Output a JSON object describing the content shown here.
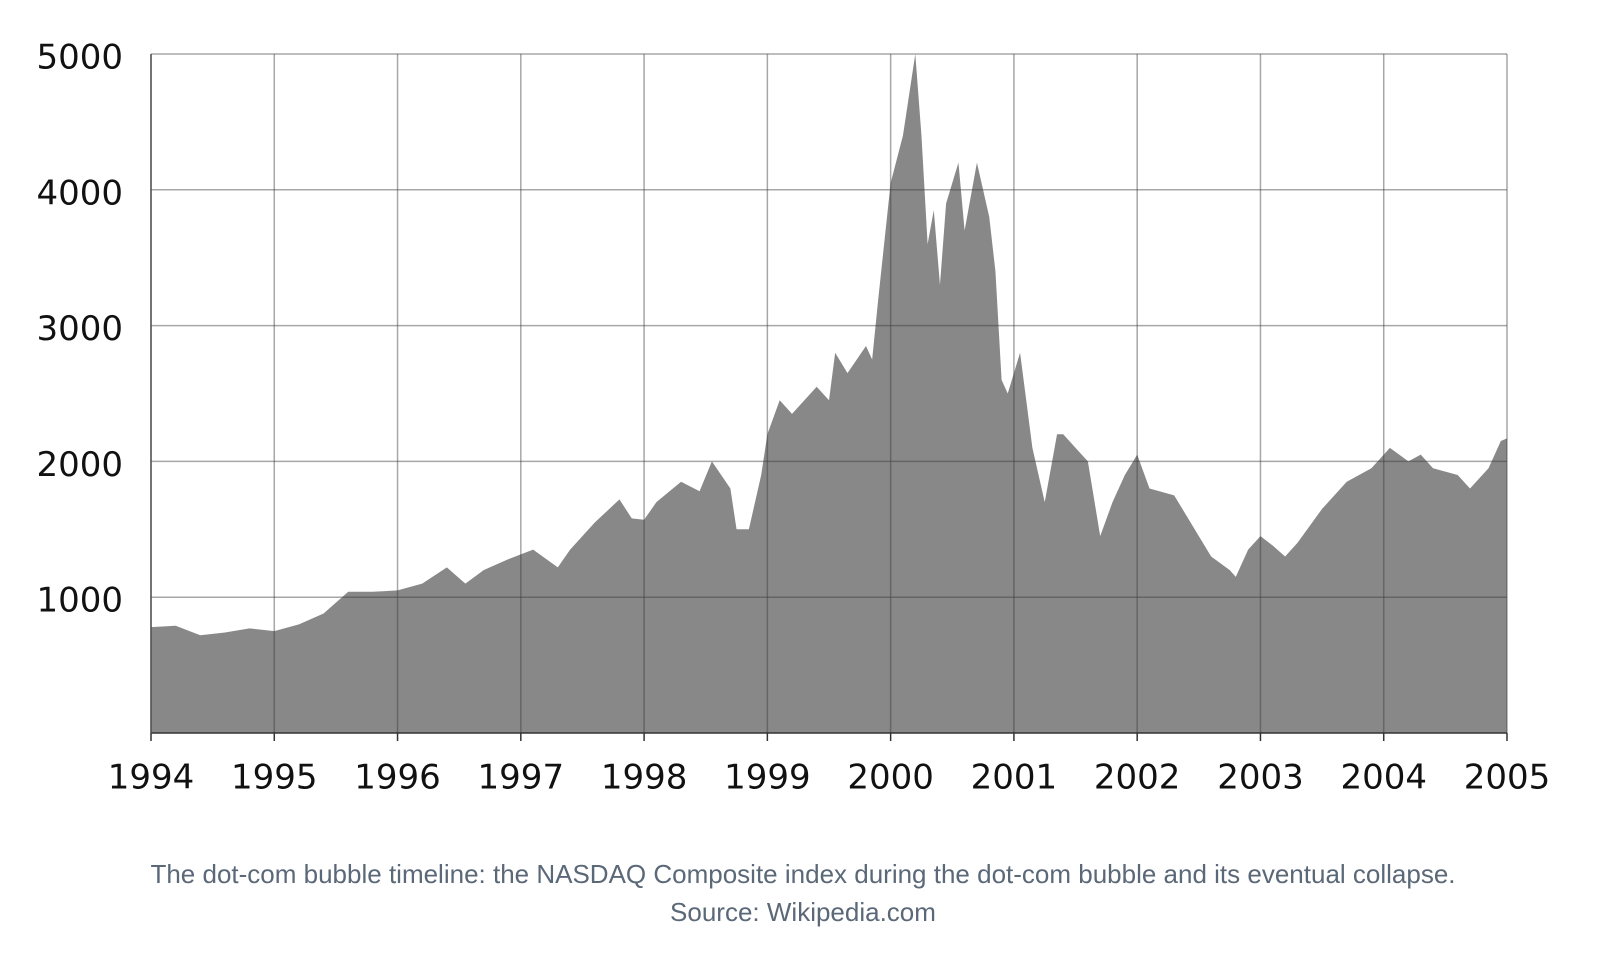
{
  "chart_data": {
    "type": "area",
    "caption": "The dot-com bubble timeline: the NASDAQ Composite index during the dot-com bubble and its eventual collapse.",
    "source": "Source: Wikipedia.com",
    "color": "#888888",
    "x": [
      1994.0,
      1994.2,
      1994.4,
      1994.6,
      1994.8,
      1995.0,
      1995.2,
      1995.4,
      1995.5,
      1995.6,
      1995.8,
      1996.0,
      1996.2,
      1996.4,
      1996.55,
      1996.7,
      1996.9,
      1997.1,
      1997.3,
      1997.4,
      1997.6,
      1997.8,
      1997.9,
      1998.0,
      1998.1,
      1998.3,
      1998.45,
      1998.55,
      1998.7,
      1998.75,
      1998.85,
      1998.95,
      1999.0,
      1999.1,
      1999.2,
      1999.4,
      1999.5,
      1999.55,
      1999.65,
      1999.8,
      1999.85,
      1999.9,
      2000.0,
      2000.1,
      2000.2,
      2000.25,
      2000.3,
      2000.35,
      2000.4,
      2000.45,
      2000.55,
      2000.6,
      2000.7,
      2000.8,
      2000.85,
      2000.9,
      2000.95,
      2001.05,
      2001.15,
      2001.25,
      2001.35,
      2001.4,
      2001.5,
      2001.6,
      2001.7,
      2001.8,
      2001.9,
      2002.0,
      2002.1,
      2002.3,
      2002.5,
      2002.6,
      2002.75,
      2002.8,
      2002.9,
      2003.0,
      2003.1,
      2003.2,
      2003.3,
      2003.5,
      2003.7,
      2003.9,
      2004.05,
      2004.2,
      2004.3,
      2004.4,
      2004.6,
      2004.7,
      2004.85,
      2004.95,
      2005.0
    ],
    "values": [
      780,
      790,
      720,
      740,
      770,
      750,
      800,
      880,
      960,
      1040,
      1040,
      1050,
      1100,
      1220,
      1100,
      1200,
      1280,
      1350,
      1220,
      1350,
      1550,
      1720,
      1580,
      1570,
      1700,
      1850,
      1780,
      2000,
      1800,
      1500,
      1500,
      1900,
      2200,
      2450,
      2350,
      2550,
      2450,
      2800,
      2650,
      2850,
      2750,
      3200,
      4050,
      4400,
      5000,
      4400,
      3600,
      3850,
      3300,
      3900,
      4200,
      3700,
      4200,
      3800,
      3400,
      2600,
      2500,
      2800,
      2100,
      1700,
      2200,
      2200,
      2100,
      2000,
      1450,
      1700,
      1900,
      2050,
      1800,
      1750,
      1450,
      1300,
      1200,
      1150,
      1350,
      1450,
      1380,
      1300,
      1400,
      1650,
      1850,
      1950,
      2100,
      2000,
      2050,
      1950,
      1900,
      1800,
      1950,
      2150,
      2170
    ],
    "xlim": [
      1994,
      2005
    ],
    "xticks": [
      1994,
      1995,
      1996,
      1997,
      1998,
      1999,
      2000,
      2001,
      2002,
      2003,
      2004,
      2005
    ],
    "ylim": [
      0,
      5000
    ],
    "yticks": [
      1000,
      2000,
      3000,
      4000,
      5000
    ],
    "grid": true
  }
}
